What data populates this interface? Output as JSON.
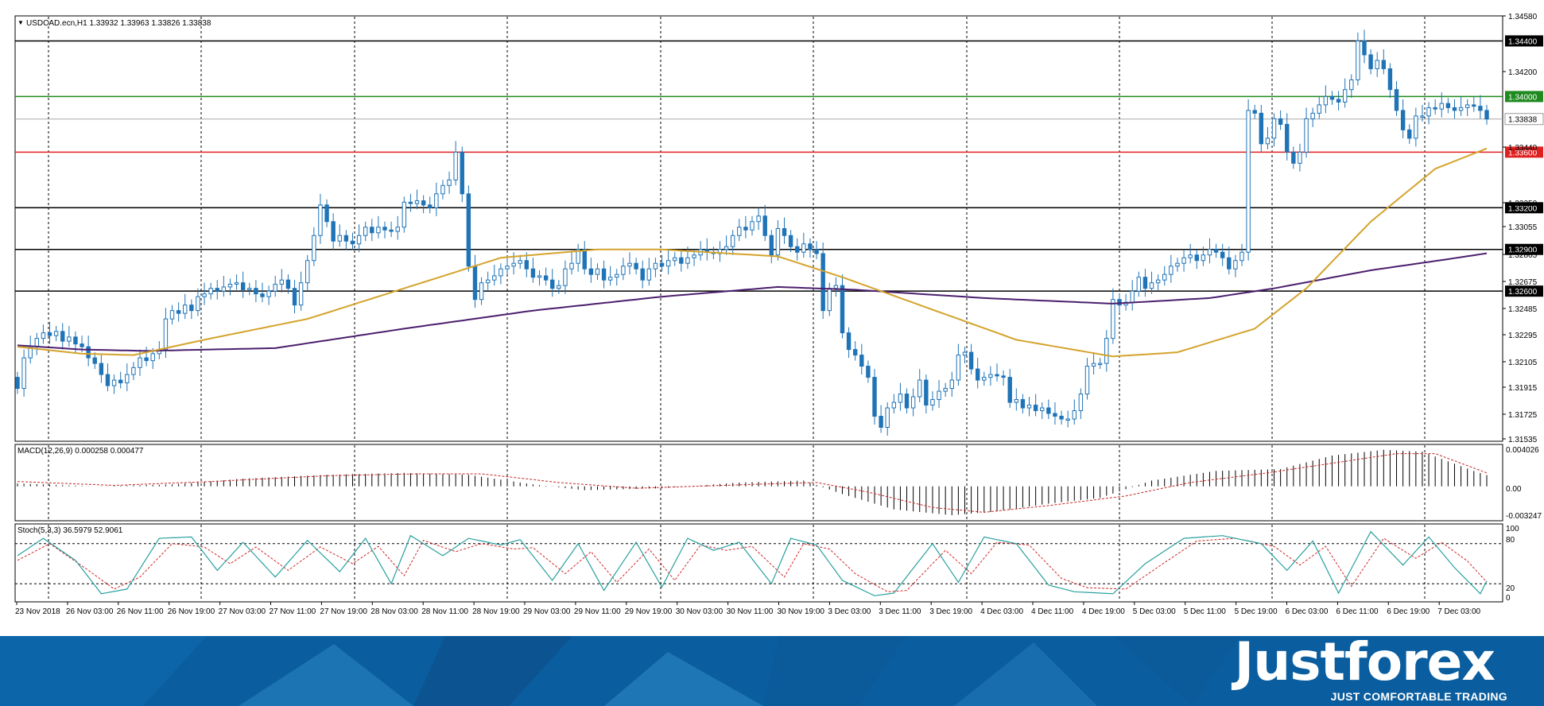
{
  "chart_data": [
    {
      "type": "candlestick",
      "symbol_header": "USDCAD.ecn,H1  1.33932 1.33963 1.33826 1.33838",
      "ylim": [
        1.3152,
        1.3458
      ],
      "price_ticks": [
        "1.34580",
        "1.34200",
        "1.33440",
        "1.33250",
        "1.33055",
        "1.32865",
        "1.32675",
        "1.32485",
        "1.32295",
        "1.32105",
        "1.31915",
        "1.31725",
        "1.31535"
      ],
      "levels": [
        {
          "value": 1.344,
          "label": "1.34400",
          "color": "#000000"
        },
        {
          "value": 1.34,
          "label": "1.34000",
          "color": "#1f8a1f"
        },
        {
          "value": 1.33838,
          "label": "1.33838",
          "color": "#a8a8a8"
        },
        {
          "value": 1.336,
          "label": "1.33600",
          "color": "#e02020"
        },
        {
          "value": 1.332,
          "label": "1.33200",
          "color": "#000000"
        },
        {
          "value": 1.329,
          "label": "1.32900",
          "color": "#000000"
        },
        {
          "value": 1.326,
          "label": "1.32600",
          "color": "#000000"
        }
      ],
      "x_labels": [
        "23 Nov 2018",
        "26 Nov 03:00",
        "26 Nov 11:00",
        "26 Nov 19:00",
        "27 Nov 03:00",
        "27 Nov 11:00",
        "27 Nov 19:00",
        "28 Nov 03:00",
        "28 Nov 11:00",
        "28 Nov 19:00",
        "29 Nov 03:00",
        "29 Nov 11:00",
        "29 Nov 19:00",
        "30 Nov 03:00",
        "30 Nov 11:00",
        "30 Nov 19:00",
        "3 Dec 03:00",
        "3 Dec 11:00",
        "3 Dec 19:00",
        "4 Dec 03:00",
        "4 Dec 11:00",
        "4 Dec 19:00",
        "5 Dec 03:00",
        "5 Dec 11:00",
        "5 Dec 19:00",
        "6 Dec 03:00",
        "6 Dec 11:00",
        "6 Dec 19:00",
        "7 Dec 03:00"
      ],
      "close": [
        1.319,
        1.3212,
        1.322,
        1.3226,
        1.323,
        1.3228,
        1.3231,
        1.3224,
        1.3227,
        1.3222,
        1.322,
        1.3212,
        1.3208,
        1.32,
        1.3192,
        1.3196,
        1.3194,
        1.32,
        1.3205,
        1.3212,
        1.321,
        1.3215,
        1.3218,
        1.324,
        1.3246,
        1.3244,
        1.325,
        1.3246,
        1.3256,
        1.3258,
        1.3262,
        1.326,
        1.3263,
        1.3265,
        1.3266,
        1.3261,
        1.3262,
        1.3258,
        1.3256,
        1.326,
        1.3265,
        1.3268,
        1.3262,
        1.325,
        1.3266,
        1.3282,
        1.33,
        1.3322,
        1.331,
        1.3296,
        1.33,
        1.3296,
        1.3294,
        1.33,
        1.3306,
        1.3302,
        1.3306,
        1.3304,
        1.3303,
        1.3306,
        1.3324,
        1.3323,
        1.3325,
        1.3322,
        1.332,
        1.333,
        1.3336,
        1.334,
        1.336,
        1.333,
        1.3278,
        1.3254,
        1.3266,
        1.3268,
        1.3271,
        1.3276,
        1.3278,
        1.328,
        1.3282,
        1.3276,
        1.327,
        1.3271,
        1.3268,
        1.3262,
        1.3264,
        1.3276,
        1.328,
        1.329,
        1.3276,
        1.3272,
        1.3276,
        1.3268,
        1.327,
        1.3272,
        1.3278,
        1.328,
        1.3276,
        1.3268,
        1.3276,
        1.328,
        1.3278,
        1.3282,
        1.3284,
        1.328,
        1.3284,
        1.3286,
        1.329,
        1.3288,
        1.3287,
        1.329,
        1.3292,
        1.33,
        1.3306,
        1.3304,
        1.331,
        1.3314,
        1.33,
        1.3286,
        1.3305,
        1.33,
        1.3292,
        1.3288,
        1.3294,
        1.329,
        1.3287,
        1.3246,
        1.3262,
        1.3264,
        1.323,
        1.3218,
        1.3214,
        1.3206,
        1.3198,
        1.317,
        1.3162,
        1.3176,
        1.318,
        1.3186,
        1.3176,
        1.3184,
        1.3196,
        1.3178,
        1.3182,
        1.3188,
        1.319,
        1.3196,
        1.3214,
        1.3216,
        1.3204,
        1.3196,
        1.3198,
        1.32,
        1.3199,
        1.3198,
        1.318,
        1.3182,
        1.3176,
        1.3178,
        1.3174,
        1.3176,
        1.3172,
        1.317,
        1.3168,
        1.3168,
        1.3174,
        1.3186,
        1.3206,
        1.3208,
        1.3208,
        1.3226,
        1.3254,
        1.325,
        1.3252,
        1.326,
        1.327,
        1.3262,
        1.3266,
        1.3268,
        1.3272,
        1.3278,
        1.328,
        1.3284,
        1.3286,
        1.3282,
        1.3286,
        1.329,
        1.3288,
        1.3284,
        1.3276,
        1.3282,
        1.3288,
        1.339,
        1.3388,
        1.3366,
        1.337,
        1.3384,
        1.338,
        1.336,
        1.3352,
        1.336,
        1.3384,
        1.3388,
        1.3394,
        1.34,
        1.3398,
        1.3396,
        1.3405,
        1.3412,
        1.344,
        1.343,
        1.342,
        1.3426,
        1.342,
        1.3405,
        1.339,
        1.3376,
        1.337,
        1.3386,
        1.3386,
        1.3392,
        1.3391,
        1.3395,
        1.3392,
        1.339,
        1.3392,
        1.3394,
        1.3393,
        1.339,
        1.33838
      ],
      "ma_slow_keys": [
        [
          0,
          1.3221
        ],
        [
          10,
          1.3218
        ],
        [
          20,
          1.3217
        ],
        [
          40,
          1.3219
        ],
        [
          60,
          1.3233
        ],
        [
          80,
          1.3246
        ],
        [
          100,
          1.3256
        ],
        [
          118,
          1.3263
        ],
        [
          130,
          1.3261
        ],
        [
          150,
          1.3255
        ],
        [
          170,
          1.3251
        ],
        [
          185,
          1.3255
        ],
        [
          195,
          1.3262
        ],
        [
          210,
          1.3275
        ],
        [
          222,
          1.3283
        ],
        [
          232,
          1.329
        ]
      ],
      "ma_fast_keys": [
        [
          0,
          1.322
        ],
        [
          10,
          1.3215
        ],
        [
          18,
          1.3214
        ],
        [
          30,
          1.3226
        ],
        [
          45,
          1.324
        ],
        [
          60,
          1.3262
        ],
        [
          75,
          1.3284
        ],
        [
          90,
          1.329
        ],
        [
          100,
          1.329
        ],
        [
          118,
          1.3285
        ],
        [
          128,
          1.327
        ],
        [
          140,
          1.325
        ],
        [
          155,
          1.3225
        ],
        [
          170,
          1.3213
        ],
        [
          180,
          1.3216
        ],
        [
          192,
          1.3233
        ],
        [
          200,
          1.3262
        ],
        [
          210,
          1.331
        ],
        [
          220,
          1.3348
        ],
        [
          232,
          1.337
        ]
      ]
    },
    {
      "type": "histogram",
      "label": "MACD(12,26,9) 0.000258 0.000477",
      "ylim": [
        -0.003247,
        0.004026
      ],
      "ticks": [
        "0.004026",
        "0.00",
        "-0.003247"
      ],
      "keys": [
        [
          0,
          0.0003
        ],
        [
          12,
          0.0
        ],
        [
          24,
          0.0002
        ],
        [
          35,
          0.0008
        ],
        [
          48,
          0.0012
        ],
        [
          60,
          0.0014
        ],
        [
          70,
          0.0012
        ],
        [
          80,
          0.0002
        ],
        [
          88,
          -0.0004
        ],
        [
          100,
          -0.0002
        ],
        [
          112,
          0.0004
        ],
        [
          122,
          0.0006
        ],
        [
          128,
          -0.0008
        ],
        [
          136,
          -0.0024
        ],
        [
          145,
          -0.003
        ],
        [
          152,
          -0.0026
        ],
        [
          160,
          -0.0018
        ],
        [
          168,
          -0.0012
        ],
        [
          176,
          0.0006
        ],
        [
          186,
          0.0016
        ],
        [
          196,
          0.0018
        ],
        [
          204,
          0.0032
        ],
        [
          212,
          0.0038
        ],
        [
          218,
          0.0036
        ],
        [
          226,
          0.0016
        ],
        [
          232,
          0.0003
        ]
      ],
      "signal_keys": [
        [
          0,
          0.0005
        ],
        [
          15,
          0.0001
        ],
        [
          30,
          0.0005
        ],
        [
          48,
          0.0011
        ],
        [
          62,
          0.0013
        ],
        [
          72,
          0.0013
        ],
        [
          84,
          0.0004
        ],
        [
          96,
          -0.0002
        ],
        [
          114,
          0.0002
        ],
        [
          124,
          0.0004
        ],
        [
          132,
          -0.0006
        ],
        [
          142,
          -0.0022
        ],
        [
          150,
          -0.0027
        ],
        [
          160,
          -0.002
        ],
        [
          172,
          -0.001
        ],
        [
          182,
          0.0004
        ],
        [
          194,
          0.0014
        ],
        [
          204,
          0.0024
        ],
        [
          214,
          0.0034
        ],
        [
          220,
          0.0034
        ],
        [
          228,
          0.0014
        ],
        [
          232,
          0.0005
        ]
      ]
    },
    {
      "type": "line",
      "label": "Stoch(5,3,3) 36.5979 52.9061",
      "ylim": [
        0,
        100
      ],
      "ticks": [
        "100",
        "80",
        "20",
        "0"
      ],
      "k_keys": [
        [
          0,
          62
        ],
        [
          4,
          88
        ],
        [
          9,
          55
        ],
        [
          13,
          5
        ],
        [
          17,
          12
        ],
        [
          22,
          88
        ],
        [
          27,
          90
        ],
        [
          31,
          40
        ],
        [
          35,
          82
        ],
        [
          40,
          30
        ],
        [
          45,
          85
        ],
        [
          50,
          38
        ],
        [
          54,
          88
        ],
        [
          58,
          20
        ],
        [
          61,
          92
        ],
        [
          66,
          62
        ],
        [
          70,
          88
        ],
        [
          75,
          78
        ],
        [
          78,
          86
        ],
        [
          83,
          25
        ],
        [
          87,
          80
        ],
        [
          91,
          10
        ],
        [
          96,
          82
        ],
        [
          100,
          15
        ],
        [
          104,
          88
        ],
        [
          108,
          70
        ],
        [
          112,
          82
        ],
        [
          117,
          20
        ],
        [
          120,
          88
        ],
        [
          124,
          78
        ],
        [
          128,
          25
        ],
        [
          133,
          2
        ],
        [
          136,
          6
        ],
        [
          142,
          80
        ],
        [
          146,
          22
        ],
        [
          150,
          90
        ],
        [
          155,
          80
        ],
        [
          160,
          18
        ],
        [
          164,
          8
        ],
        [
          170,
          5
        ],
        [
          175,
          50
        ],
        [
          181,
          88
        ],
        [
          187,
          92
        ],
        [
          193,
          80
        ],
        [
          197,
          40
        ],
        [
          201,
          84
        ],
        [
          205,
          6
        ],
        [
          210,
          98
        ],
        [
          215,
          48
        ],
        [
          219,
          90
        ],
        [
          223,
          44
        ],
        [
          227,
          5
        ],
        [
          231,
          82
        ],
        [
          234,
          68
        ],
        [
          237,
          38
        ]
      ],
      "d_keys": [
        [
          0,
          55
        ],
        [
          5,
          80
        ],
        [
          11,
          40
        ],
        [
          15,
          12
        ],
        [
          19,
          30
        ],
        [
          24,
          80
        ],
        [
          29,
          75
        ],
        [
          33,
          50
        ],
        [
          37,
          75
        ],
        [
          42,
          40
        ],
        [
          47,
          75
        ],
        [
          52,
          50
        ],
        [
          56,
          76
        ],
        [
          60,
          32
        ],
        [
          63,
          85
        ],
        [
          68,
          68
        ],
        [
          72,
          80
        ],
        [
          77,
          72
        ],
        [
          80,
          74
        ],
        [
          85,
          35
        ],
        [
          89,
          68
        ],
        [
          93,
          22
        ],
        [
          98,
          72
        ],
        [
          102,
          25
        ],
        [
          106,
          78
        ],
        [
          110,
          70
        ],
        [
          114,
          76
        ],
        [
          119,
          30
        ],
        [
          122,
          80
        ],
        [
          126,
          72
        ],
        [
          130,
          35
        ],
        [
          135,
          8
        ],
        [
          138,
          10
        ],
        [
          144,
          70
        ],
        [
          148,
          35
        ],
        [
          152,
          82
        ],
        [
          157,
          78
        ],
        [
          162,
          28
        ],
        [
          166,
          14
        ],
        [
          172,
          12
        ],
        [
          177,
          45
        ],
        [
          183,
          84
        ],
        [
          189,
          88
        ],
        [
          195,
          76
        ],
        [
          199,
          48
        ],
        [
          203,
          76
        ],
        [
          207,
          16
        ],
        [
          212,
          88
        ],
        [
          217,
          58
        ],
        [
          221,
          82
        ],
        [
          225,
          54
        ],
        [
          229,
          12
        ],
        [
          233,
          70
        ],
        [
          236,
          66
        ],
        [
          237,
          53
        ]
      ]
    }
  ],
  "banner": {
    "logo": "Justforex",
    "tagline": "JUST COMFORTABLE TRADING"
  },
  "colors": {
    "candle": "#1f73b7",
    "ma_fast": "#d4a32c",
    "ma_slow": "#4b1f6e",
    "grid": "#000000",
    "banner_bg": "#0a5d9e",
    "stoch_k": "#2aa0a0",
    "stoch_d": "#d02828"
  }
}
